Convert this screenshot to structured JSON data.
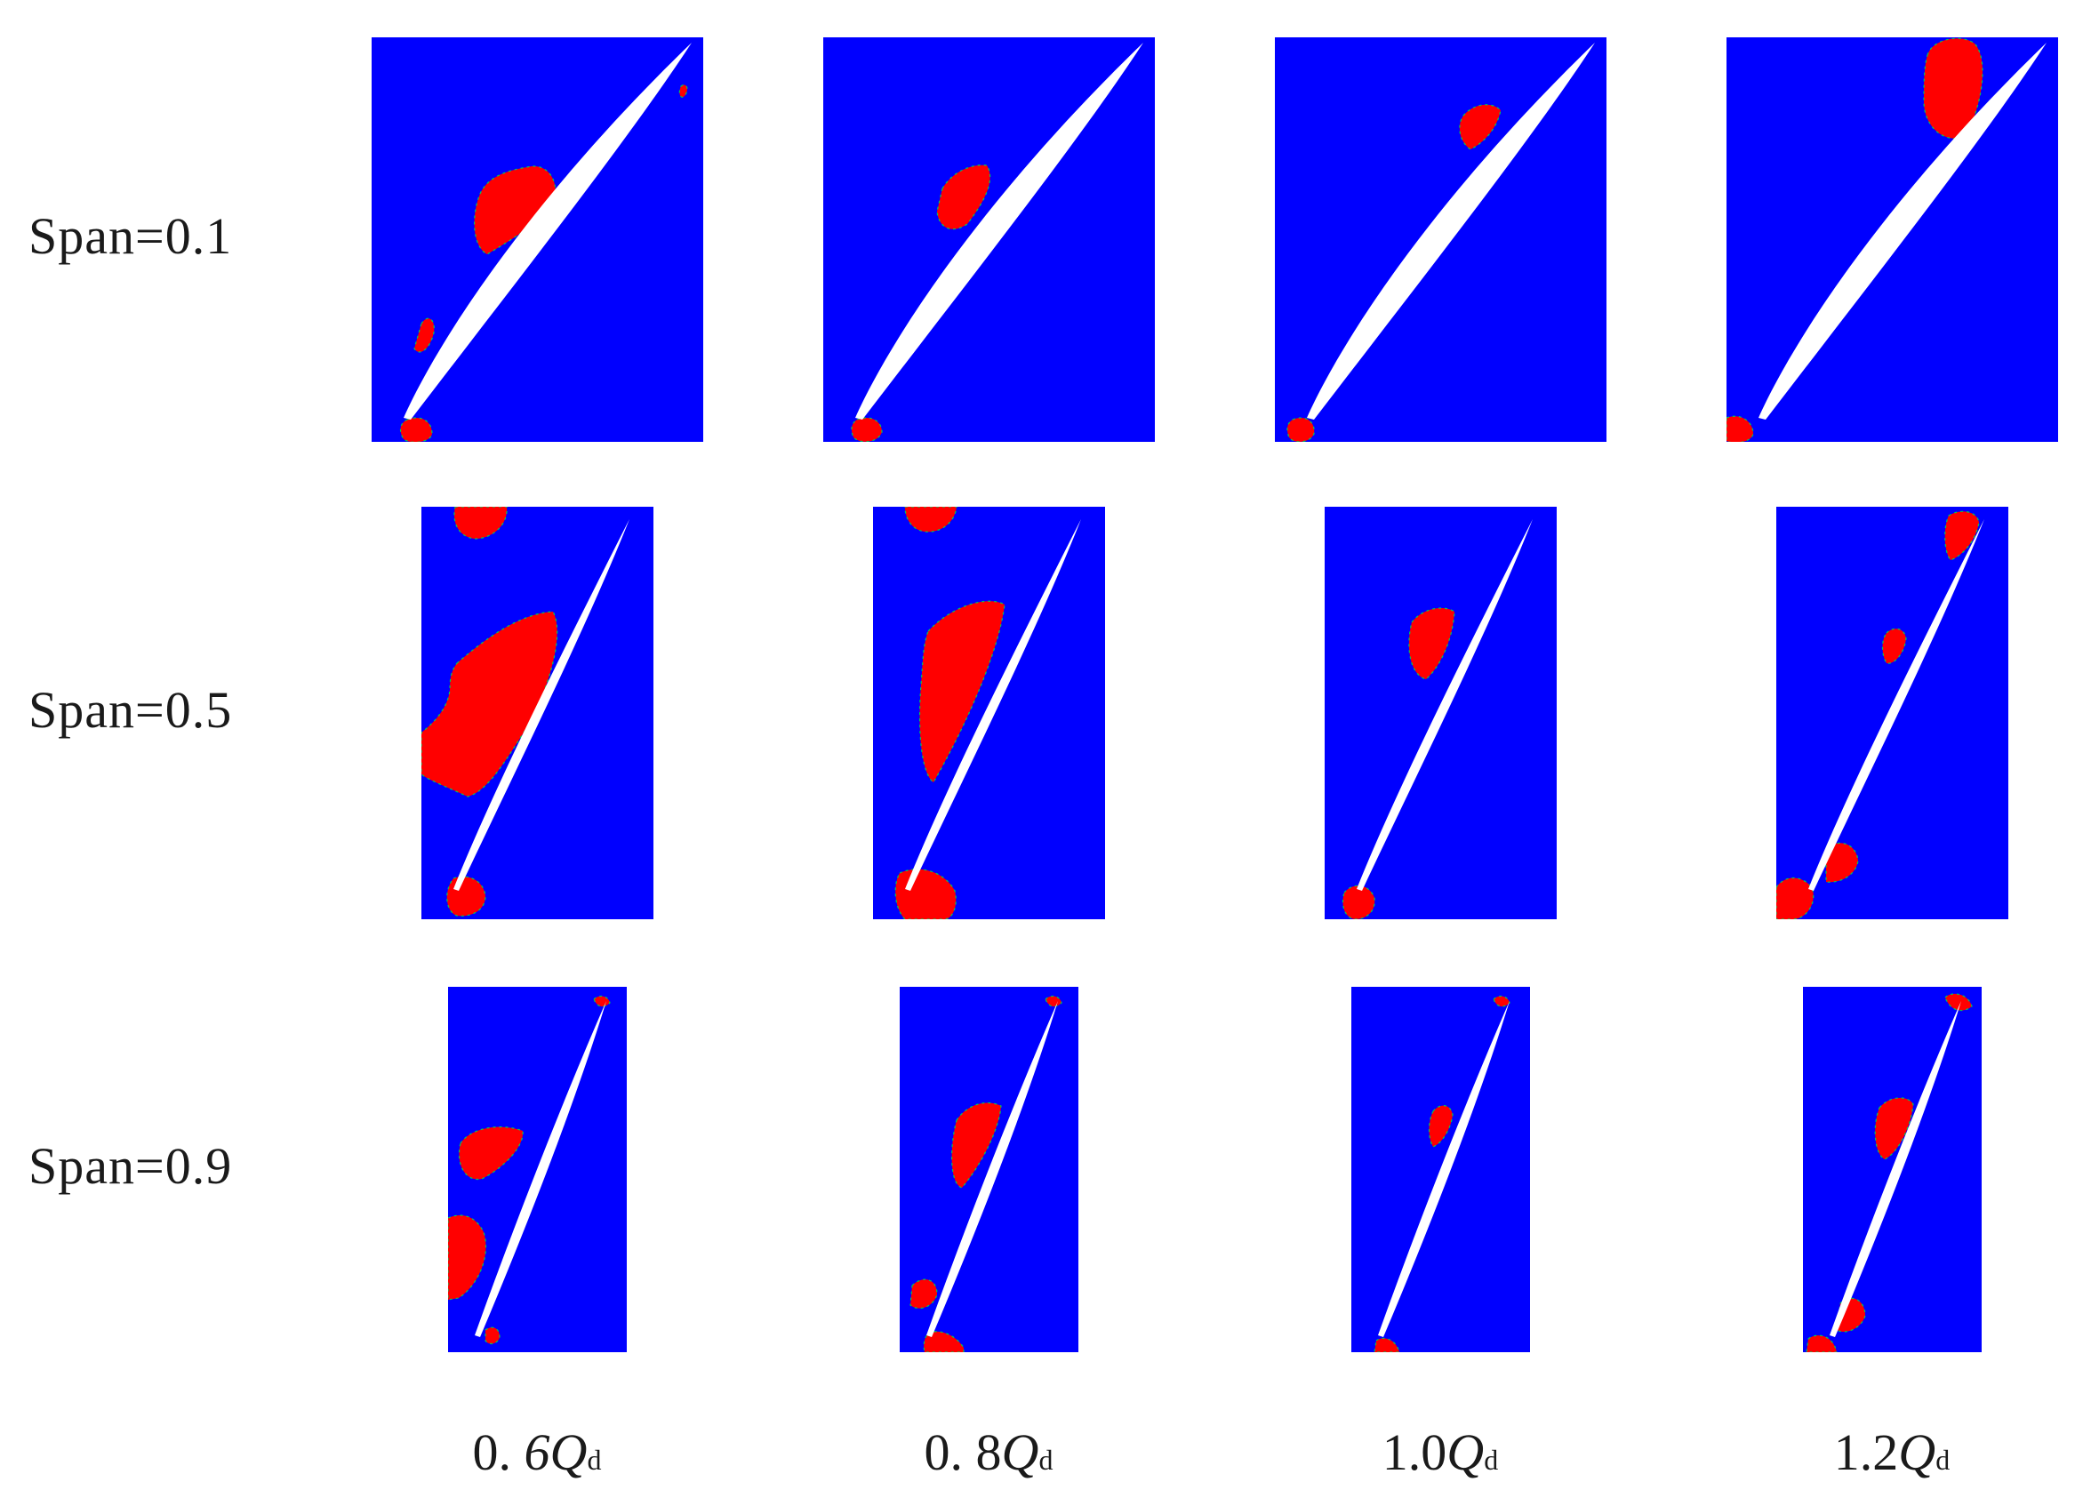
{
  "row_labels": {
    "span_01": "Span=0.1",
    "span_05": "Span=0.5",
    "span_09": "Span=0.9"
  },
  "column_labels": {
    "q06": {
      "prefix": "0. ",
      "italic_digit": "6",
      "symbol": "Q",
      "subscript": "d"
    },
    "q08": {
      "prefix": "0. 8",
      "italic_digit": "",
      "symbol": "Q",
      "subscript": "d"
    },
    "q10": {
      "prefix": "1.0",
      "italic_digit": "",
      "symbol": "Q",
      "subscript": "d"
    },
    "q12": {
      "prefix": "1.2",
      "italic_digit": "",
      "symbol": "Q",
      "subscript": "d"
    }
  },
  "colors": {
    "background_fluid": "#0000ff",
    "cavitation_region": "#ff0000",
    "blade": "#ffffff",
    "transition_edge": "#00c853"
  }
}
